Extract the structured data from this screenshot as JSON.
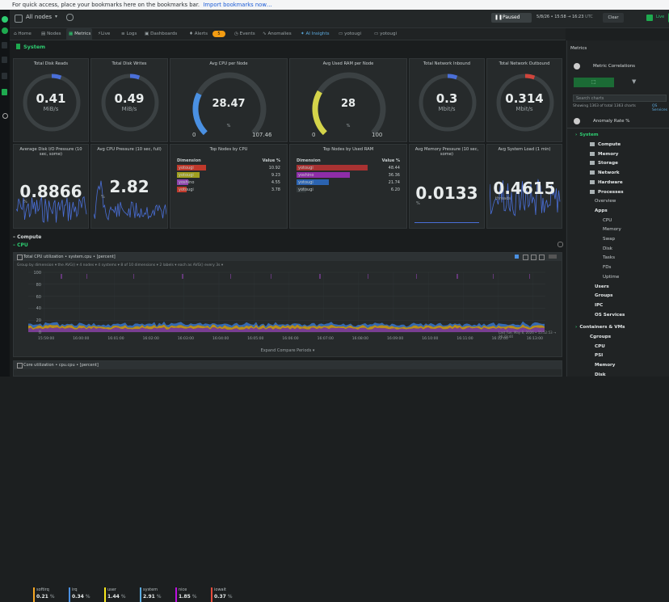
{
  "bookmarks": {
    "text": "For quick access, place your bookmarks here on the bookmarks bar.",
    "link": "Import bookmarks now…"
  },
  "topbar": {
    "nodes_filter": "All nodes",
    "paused_label": "Paused",
    "time_range": "5/8/26 • 15:58 → 16:23 ",
    "tz": "UTC",
    "clear_label": "Clear",
    "live_label": "Live",
    "alert_count": "4"
  },
  "tabs": [
    {
      "label": "Home"
    },
    {
      "label": "Nodes"
    },
    {
      "label": "Metrics"
    },
    {
      "label": "Live"
    },
    {
      "label": "Logs"
    },
    {
      "label": "Dashboards"
    },
    {
      "label": "Alerts"
    },
    {
      "label": "Events"
    },
    {
      "label": "Anomalies"
    },
    {
      "label": "AI Insights"
    },
    {
      "label": "yotougi"
    },
    {
      "label": "yotougi"
    }
  ],
  "alerts_badge": "5",
  "section": {
    "system": "System",
    "compute": "Compute",
    "cpu": "CPU"
  },
  "gauges": [
    {
      "title": "Total Disk Reads",
      "value": "0.41",
      "unit": "MiB/s"
    },
    {
      "title": "Total Disk Writes",
      "value": "0.49",
      "unit": "MiB/s"
    },
    {
      "title": "Avg CPU per Node",
      "value": "28.47",
      "unit": "%",
      "min": "0",
      "max": "107.46"
    },
    {
      "title": "Avg Used RAM per Node",
      "value": "28",
      "unit": "%",
      "min": "0",
      "max": "100"
    },
    {
      "title": "Total Network Inbound",
      "value": "0.3",
      "unit": "Mbit/s"
    },
    {
      "title": "Total Network Outbound",
      "value": "0.314",
      "unit": "Mbit/s"
    }
  ],
  "row2": {
    "disk_pressure": {
      "title": "Average Disk I/O Pressure (10 sec, some)",
      "value": "0.8866",
      "unit": "%"
    },
    "cpu_pressure": {
      "title": "Avg CPU Pressure (10 sec, full)",
      "value": "2.82",
      "unit": "%"
    },
    "top_cpu": {
      "title": "Top Nodes by CPU",
      "col1": "Dimension",
      "col2": "Value %",
      "rows": [
        {
          "name": "yotougi",
          "value": "10.92"
        },
        {
          "name": "yotougi",
          "value": "9.23"
        },
        {
          "name": "yoshino",
          "value": "4.55"
        },
        {
          "name": "yotougi",
          "value": "3.78"
        }
      ]
    },
    "top_ram": {
      "title": "Top Nodes by Used RAM",
      "col1": "Dimension",
      "col2": "Value %",
      "rows": [
        {
          "name": "yotougi",
          "value": "48.44"
        },
        {
          "name": "yoshino",
          "value": "36.36"
        },
        {
          "name": "yotougi",
          "value": "21.74"
        },
        {
          "name": "yotougi",
          "value": "6.20"
        }
      ]
    },
    "mem_pressure": {
      "title": "Avg Memory Pressure (10 sec, some)",
      "value": "0.0133",
      "unit": "%"
    },
    "load": {
      "title": "Avg System Load (1 min)",
      "value": "0.4615",
      "unit": "threads"
    }
  },
  "cpu_chart": {
    "title": "Total CPU utilization • system.cpu • [percent]",
    "filter": "Group by dimension ▾  the AVG() ▾  4 nodes ▾  4 systems ▾  8 of 10 dimensions ▾  2 labels ▾  each as AVG() every 3s ▾",
    "yticks": [
      "100",
      "80",
      "60",
      "40",
      "20",
      "0"
    ],
    "xticks": [
      "15:59:00",
      "16:00:00",
      "16:01:00",
      "16:02:00",
      "16:03:00",
      "16:04:00",
      "16:05:00",
      "16:06:00",
      "16:07:00",
      "16:08:00",
      "16:09:00",
      "16:10:00",
      "16:11:00",
      "16:12:00",
      "16:13:00"
    ],
    "footer": "Last Tue, May 8, 2026 • 15:52:53 → 16:23:44",
    "expand": "Expand  Compare Periods ▾",
    "legend": [
      {
        "name": "softirq",
        "value": "0.21",
        "unit": "%",
        "color": "#f5a623"
      },
      {
        "name": "irq",
        "value": "0.34",
        "unit": "%",
        "color": "#4a90e2"
      },
      {
        "name": "user",
        "value": "1.44",
        "unit": "%",
        "color": "#f8e71c"
      },
      {
        "name": "system",
        "value": "2.91",
        "unit": "%",
        "color": "#5dade2"
      },
      {
        "name": "nice",
        "value": "1.85",
        "unit": "%",
        "color": "#bd10e0"
      },
      {
        "name": "iowait",
        "value": "0.37",
        "unit": "%",
        "color": "#e74c3c"
      }
    ]
  },
  "cpu_chart2": {
    "title": "Core utilization • cpu.cpu • [percent]"
  },
  "right_panel": {
    "title": "Metrics",
    "correlations": "Metric Correlations",
    "search_placeholder": "Search charts",
    "showing": "Showing 1363 of total 1363 charts",
    "os_services": "OS Services",
    "anomaly": "Anomaly Rate %",
    "tree": [
      {
        "label": "System",
        "level": 0
      },
      {
        "label": "Compute",
        "level": 1
      },
      {
        "label": "Memory",
        "level": 1
      },
      {
        "label": "Storage",
        "level": 1
      },
      {
        "label": "Network",
        "level": 1
      },
      {
        "label": "Hardware",
        "level": 1
      },
      {
        "label": "Processes",
        "level": 1
      },
      {
        "label": "Overview",
        "level": 2
      },
      {
        "label": "Apps",
        "level": 2
      },
      {
        "label": "CPU",
        "level": 3
      },
      {
        "label": "Memory",
        "level": 3
      },
      {
        "label": "Swap",
        "level": 3
      },
      {
        "label": "Disk",
        "level": 3
      },
      {
        "label": "Tasks",
        "level": 3
      },
      {
        "label": "FDs",
        "level": 3
      },
      {
        "label": "Uptime",
        "level": 3
      },
      {
        "label": "Users",
        "level": 2
      },
      {
        "label": "Groups",
        "level": 2
      },
      {
        "label": "IPC",
        "level": 2
      },
      {
        "label": "OS Services",
        "level": 2
      },
      {
        "label": "Containers & VMs",
        "level": 0
      },
      {
        "label": "Cgroups",
        "level": 1
      },
      {
        "label": "CPU",
        "level": 2
      },
      {
        "label": "PSI",
        "level": 2
      },
      {
        "label": "Memory",
        "level": 2
      },
      {
        "label": "Disk",
        "level": 2
      }
    ]
  }
}
